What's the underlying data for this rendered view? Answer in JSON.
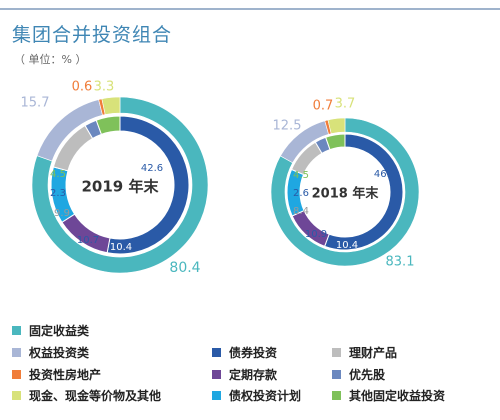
{
  "title": "集团合并投资组合",
  "unit": "（ 单位：% ）",
  "colors": {
    "fixed_income": "#4ab7be",
    "equity": "#a9b6d6",
    "bonds": "#2a5aa7",
    "wealth": "#bdbdbd",
    "real_estate": "#f07d3a",
    "term_deposit": "#6e4797",
    "preferred": "#6b88bf",
    "cash": "#d8e27a",
    "debt_plan": "#1fa7e1",
    "other_fixed": "#7fc15a"
  },
  "chart_data": [
    {
      "type": "pie",
      "center_label": "2019 年末",
      "outer_ring": [
        {
          "category": "固定收益类",
          "value": 80.4,
          "color_key": "fixed_income"
        },
        {
          "category": "权益投资类",
          "value": 15.7,
          "color_key": "equity"
        },
        {
          "category": "投资性房地产",
          "value": 0.6,
          "color_key": "real_estate"
        },
        {
          "category": "现金、现金等价物及其他",
          "value": 3.3,
          "color_key": "cash"
        }
      ],
      "inner_ring": [
        {
          "category": "债券投资",
          "value": 42.6,
          "color_key": "bonds"
        },
        {
          "category": "定期存款",
          "value": 10.4,
          "color_key": "term_deposit"
        },
        {
          "category": "债权投资计划",
          "value": 10.7,
          "color_key": "debt_plan"
        },
        {
          "category": "理财产品",
          "value": 9.9,
          "color_key": "wealth"
        },
        {
          "category": "优先股",
          "value": 2.3,
          "color_key": "preferred"
        },
        {
          "category": "其他固定收益投资",
          "value": 4.5,
          "color_key": "other_fixed"
        }
      ]
    },
    {
      "type": "pie",
      "center_label": "2018 年末",
      "outer_ring": [
        {
          "category": "固定收益类",
          "value": 83.1,
          "color_key": "fixed_income"
        },
        {
          "category": "权益投资类",
          "value": 12.5,
          "color_key": "equity"
        },
        {
          "category": "投资性房地产",
          "value": 0.7,
          "color_key": "real_estate"
        },
        {
          "category": "现金、现金等价物及其他",
          "value": 3.7,
          "color_key": "cash"
        }
      ],
      "inner_ring": [
        {
          "category": "债券投资",
          "value": 46.3,
          "color_key": "bonds"
        },
        {
          "category": "定期存款",
          "value": 10.4,
          "color_key": "term_deposit"
        },
        {
          "category": "债权投资计划",
          "value": 10.9,
          "color_key": "debt_plan"
        },
        {
          "category": "理财产品",
          "value": 8.4,
          "color_key": "wealth"
        },
        {
          "category": "优先股",
          "value": 2.6,
          "color_key": "preferred"
        },
        {
          "category": "其他固定收益投资",
          "value": 4.5,
          "color_key": "other_fixed"
        }
      ]
    }
  ],
  "legend": [
    {
      "label": "固定收益类",
      "color_key": "fixed_income"
    },
    {
      "label": "权益投资类",
      "color_key": "equity"
    },
    {
      "label": "投资性房地产",
      "color_key": "real_estate"
    },
    {
      "label": "现金、现金等价物及其他",
      "color_key": "cash"
    },
    {
      "label": "债券投资",
      "color_key": "bonds"
    },
    {
      "label": "定期存款",
      "color_key": "term_deposit"
    },
    {
      "label": "债权投资计划",
      "color_key": "debt_plan"
    },
    {
      "label": "理财产品",
      "color_key": "wealth"
    },
    {
      "label": "优先股",
      "color_key": "preferred"
    },
    {
      "label": "其他固定收益投资",
      "color_key": "other_fixed"
    }
  ]
}
